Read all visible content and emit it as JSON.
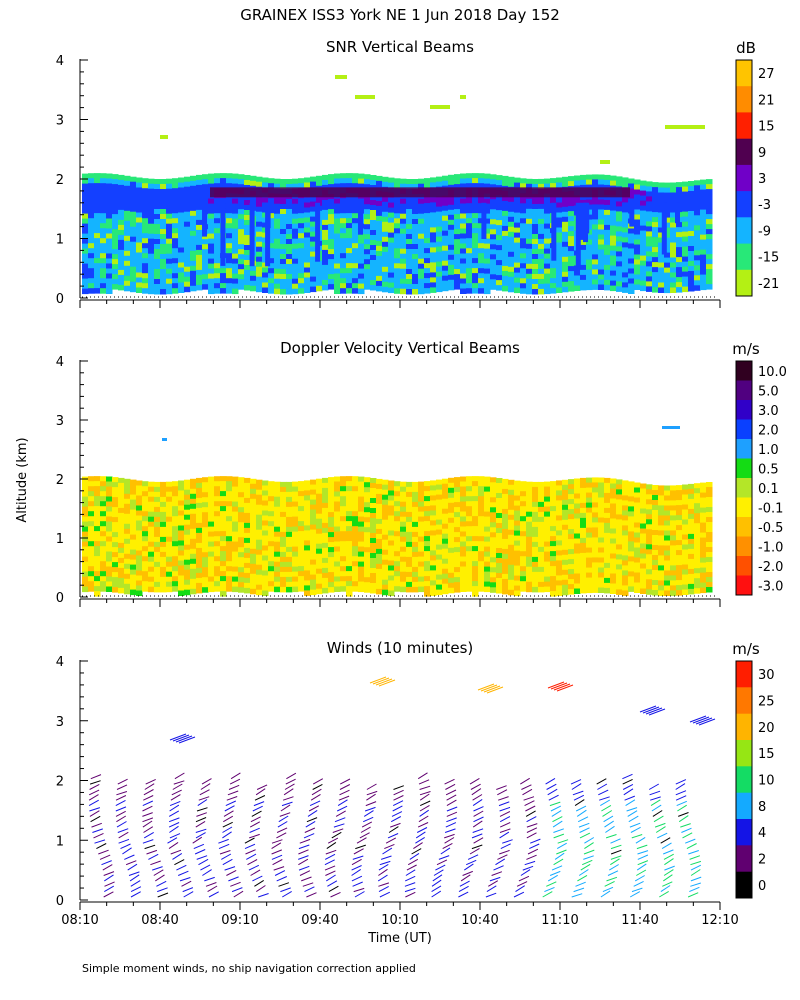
{
  "figure": {
    "title": "GRAINEX ISS3 York NE   1 Jun 2018 Day 152",
    "ylabel": "Altitude (km)",
    "xlabel": "Time (UT)",
    "footnote": "Simple moment winds, no ship navigation correction applied"
  },
  "chart_data": [
    {
      "type": "heatmap",
      "title": "SNR Vertical Beams",
      "ylim": [
        0,
        4
      ],
      "yticks": [
        "0",
        "1",
        "2",
        "3",
        "4"
      ],
      "xticks": [
        "08:10",
        "08:40",
        "09:10",
        "09:40",
        "10:10",
        "10:40",
        "11:10",
        "11:40",
        "12:10"
      ],
      "colorbar": {
        "unit": "dB",
        "labels": [
          "27",
          "21",
          "15",
          "9",
          "3",
          "-3",
          "-9",
          "-15",
          "-21"
        ],
        "colors": [
          "#ffc400",
          "#ff8c00",
          "#ff2000",
          "#500050",
          "#7000c8",
          "#1440ff",
          "#14b4ff",
          "#28e878",
          "#b4f014"
        ]
      },
      "layers": {
        "echo_top_km": 2.05,
        "deep_blue_layer_km": [
          1.55,
          1.9
        ],
        "purple_band_km": [
          1.6,
          1.85
        ],
        "lowest_gate_km": 0.15
      }
    },
    {
      "type": "heatmap",
      "title": "Doppler Velocity Vertical Beams",
      "ylim": [
        0,
        4
      ],
      "yticks": [
        "0",
        "1",
        "2",
        "3",
        "4"
      ],
      "colorbar": {
        "unit": "m/s",
        "labels": [
          "10.0",
          "5.0",
          "3.0",
          "2.0",
          "1.0",
          "0.5",
          "0.1",
          "-0.1",
          "-0.5",
          "-1.0",
          "-2.0",
          "-3.0"
        ],
        "colors": [
          "#300020",
          "#500080",
          "#3000c8",
          "#0a40ff",
          "#1ea0ff",
          "#14dc14",
          "#b4e628",
          "#fff000",
          "#ffc000",
          "#ff9000",
          "#ff5000",
          "#ff1010"
        ]
      },
      "layers": {
        "echo_top_km": 2.0,
        "lowest_gate_km": 0.1
      }
    },
    {
      "type": "scatter",
      "title": "Winds (10 minutes)",
      "ylim": [
        0,
        4
      ],
      "yticks": [
        "0",
        "1",
        "2",
        "3",
        "4"
      ],
      "xticks": [
        "08:10",
        "08:40",
        "09:10",
        "09:40",
        "10:10",
        "10:40",
        "11:10",
        "11:40",
        "12:10"
      ],
      "x_range_hours": [
        8.1667,
        12.1667
      ],
      "profile_times": [
        "08:20",
        "08:30",
        "08:40",
        "08:50",
        "09:00",
        "09:10",
        "09:20",
        "09:30",
        "09:40",
        "09:50",
        "10:00",
        "10:10",
        "10:20",
        "10:30",
        "10:40",
        "10:50",
        "11:00",
        "11:10",
        "11:20",
        "11:30",
        "11:40",
        "11:50",
        "12:00"
      ],
      "colorbar": {
        "unit": "m/s",
        "labels": [
          "30",
          "25",
          "20",
          "15",
          "10",
          "8",
          "4",
          "2",
          "0"
        ],
        "colors": [
          "#ff1e00",
          "#ff7800",
          "#ffb400",
          "#96e614",
          "#14dc64",
          "#14aaff",
          "#1414e6",
          "#600070",
          "#000000"
        ]
      }
    }
  ]
}
